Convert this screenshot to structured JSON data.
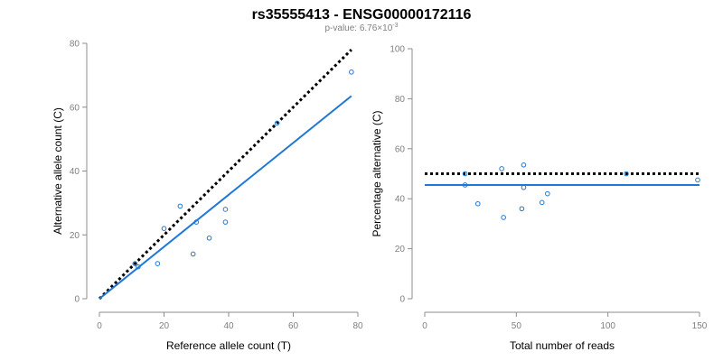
{
  "title": "rs35555413 - ENSG00000172116",
  "subtitle": {
    "prefix": "p-value: 6.76×10",
    "exponent": "-3"
  },
  "colors": {
    "series": "#1f78d6",
    "reference_line": "#000000",
    "axis": "#8c8c8c"
  },
  "chart_data": [
    {
      "type": "scatter",
      "xlabel": "Reference allele count (T)",
      "ylabel": "Alternative allele count (C)",
      "xlim": [
        0,
        80
      ],
      "ylim": [
        0,
        80
      ],
      "xticks": [
        0,
        20,
        40,
        60,
        80
      ],
      "yticks": [
        0,
        20,
        40,
        60,
        80
      ],
      "points": [
        {
          "x": 11,
          "y": 11
        },
        {
          "x": 12,
          "y": 10
        },
        {
          "x": 18,
          "y": 11
        },
        {
          "x": 20,
          "y": 22
        },
        {
          "x": 25,
          "y": 29
        },
        {
          "x": 29,
          "y": 14
        },
        {
          "x": 30,
          "y": 24
        },
        {
          "x": 34,
          "y": 19
        },
        {
          "x": 39,
          "y": 24
        },
        {
          "x": 39,
          "y": 28
        },
        {
          "x": 55,
          "y": 55
        },
        {
          "x": 78,
          "y": 71
        }
      ],
      "lines": [
        {
          "style": "dotted",
          "color": "#000000",
          "from": [
            0,
            0
          ],
          "to": [
            78,
            78
          ]
        },
        {
          "style": "solid",
          "color": "#1f78d6",
          "from": [
            0,
            0
          ],
          "to": [
            78,
            63.5
          ]
        }
      ],
      "grid": false
    },
    {
      "type": "scatter",
      "xlabel": "Total number of reads",
      "ylabel": "Percentage alternative (C)",
      "xlim": [
        0,
        150
      ],
      "ylim": [
        0,
        100
      ],
      "xticks": [
        0,
        50,
        100,
        150
      ],
      "yticks": [
        0,
        20,
        40,
        60,
        80,
        100
      ],
      "points": [
        {
          "x": 22,
          "y": 50
        },
        {
          "x": 22,
          "y": 45.5
        },
        {
          "x": 29,
          "y": 38
        },
        {
          "x": 42,
          "y": 52
        },
        {
          "x": 43,
          "y": 32.5
        },
        {
          "x": 53,
          "y": 36
        },
        {
          "x": 54,
          "y": 53.5
        },
        {
          "x": 54,
          "y": 44.5
        },
        {
          "x": 64,
          "y": 38.5
        },
        {
          "x": 67,
          "y": 42
        },
        {
          "x": 110,
          "y": 50
        },
        {
          "x": 149,
          "y": 47.5
        }
      ],
      "lines": [
        {
          "style": "dotted",
          "color": "#000000",
          "from": [
            0,
            50
          ],
          "to": [
            150,
            50
          ]
        },
        {
          "style": "solid",
          "color": "#1f78d6",
          "from": [
            0,
            45.5
          ],
          "to": [
            150,
            45.5
          ]
        }
      ],
      "grid": false
    }
  ]
}
